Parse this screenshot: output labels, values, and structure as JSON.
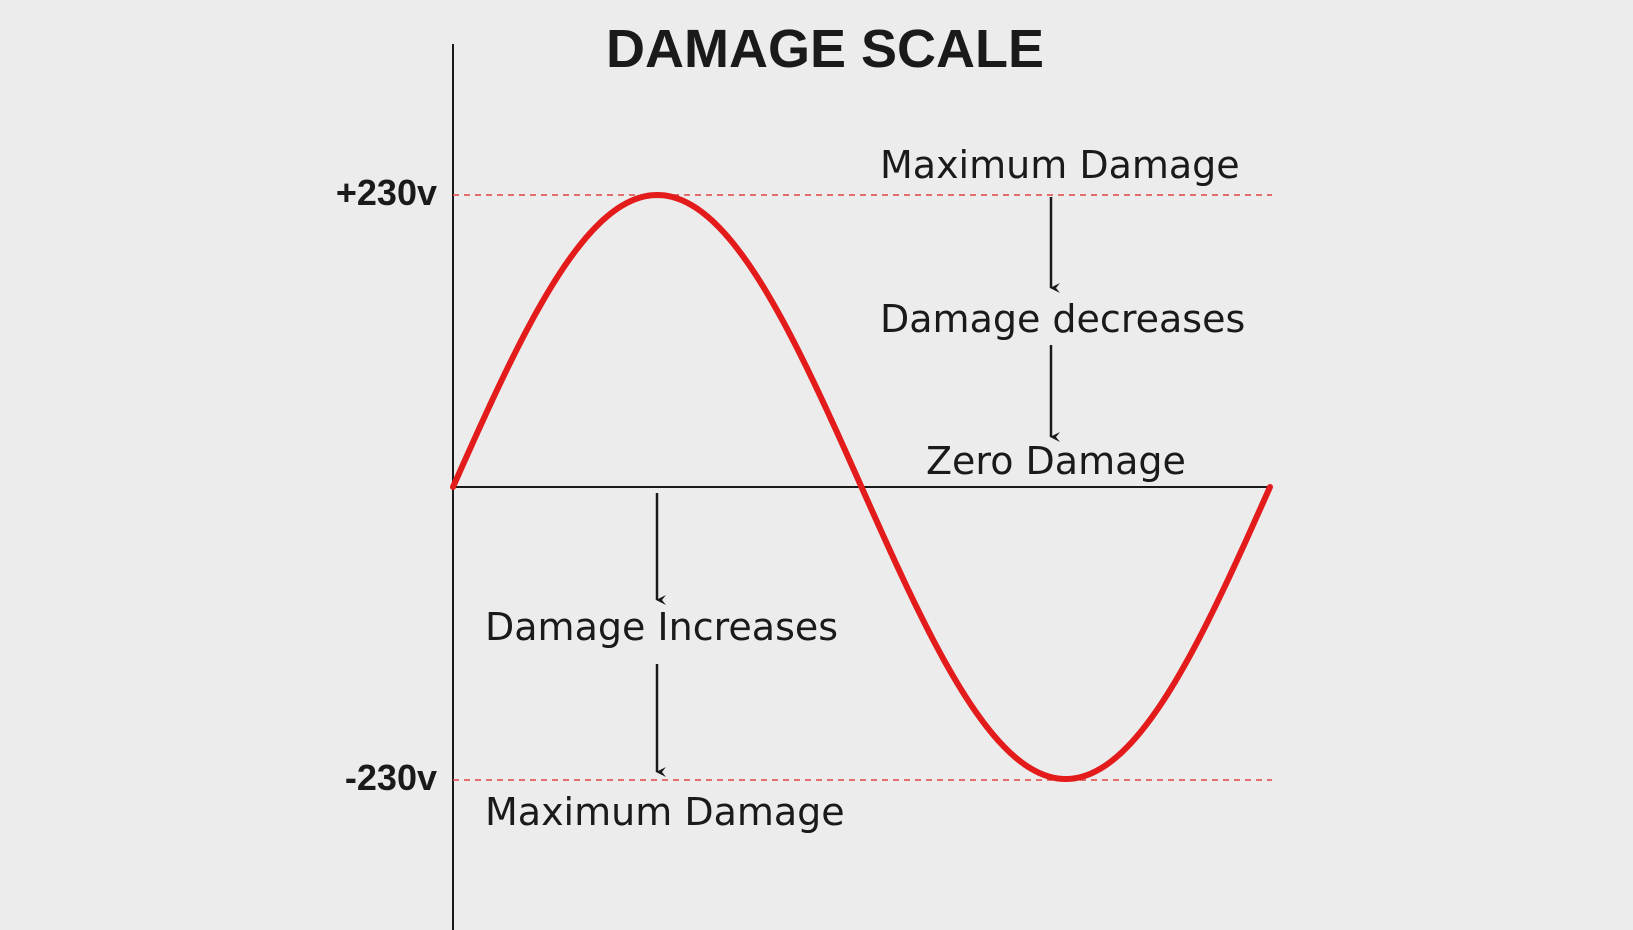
{
  "title": "DAMAGE SCALE",
  "levels": {
    "positive": "+230v",
    "negative": "-230v"
  },
  "annotations": {
    "top_max": "Maximum Damage",
    "decreases": "Damage decreases",
    "zero": "Zero Damage",
    "increases": "Damage Increases",
    "bottom_max": "Maximum Damage"
  },
  "colors": {
    "wave": "#e31b1b",
    "guides": "#e04545",
    "axes": "#1a1a1a",
    "background": "#ececec"
  }
}
